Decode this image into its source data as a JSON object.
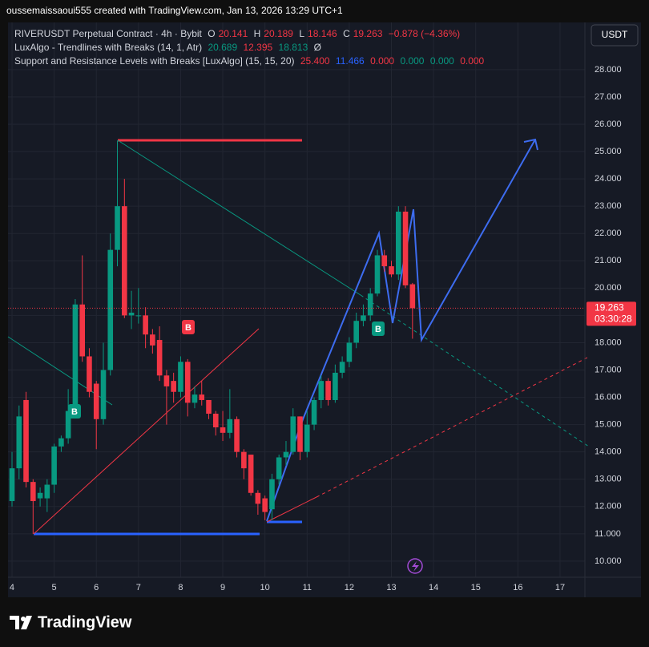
{
  "header": {
    "text": "oussemaissaoui555 created with TradingView.com, Jan 13, 2026 13:29 UTC+1"
  },
  "legend": {
    "symbol": {
      "name": "RIVERUSDT Perpetual Contract · 4h · Bybit",
      "o_label": "O",
      "o": "20.141",
      "h_label": "H",
      "h": "20.189",
      "l_label": "L",
      "l": "18.146",
      "c_label": "C",
      "c": "19.263",
      "change": "−0.878 (−4.36%)"
    },
    "trendlines": {
      "name": "LuxAlgo - Trendlines with Breaks (14, 1, Atr)",
      "values": [
        "20.689",
        "12.395",
        "18.813",
        "Ø"
      ]
    },
    "sr": {
      "name": "Support and Resistance Levels with Breaks [LuxAlgo] (15, 15, 20)",
      "values": [
        "25.400",
        "11.466",
        "0.000",
        "0.000",
        "0.000",
        "0.000"
      ]
    }
  },
  "currency": "USDT",
  "signals": [
    "B",
    "B",
    "B"
  ],
  "brand": "TradingView",
  "chart_data": {
    "type": "candlestick",
    "x": [
      4,
      4.167,
      4.333,
      4.5,
      4.667,
      4.833,
      5,
      5.167,
      5.333,
      5.5,
      5.667,
      5.833,
      6,
      6.167,
      6.333,
      6.5,
      6.667,
      6.833,
      7,
      7.167,
      7.333,
      7.5,
      7.667,
      7.833,
      8,
      8.167,
      8.333,
      8.5,
      8.667,
      8.833,
      9,
      9.167,
      9.333,
      9.5,
      9.667,
      9.833,
      10,
      10.167,
      10.333,
      10.5,
      10.667,
      10.833,
      11,
      11.167,
      11.333,
      11.5,
      11.667,
      11.833,
      12,
      12.167,
      12.333,
      12.5,
      12.667,
      12.833,
      13,
      13.167,
      13.333,
      13.5
    ],
    "open": [
      12.2,
      13.4,
      15.9,
      12.9,
      12.3,
      12.3,
      12.8,
      14.2,
      14.5,
      15.5,
      19.4,
      17.5,
      16.5,
      15.2,
      17.0,
      21.4,
      23.0,
      19.0,
      19.0,
      19.0,
      18.3,
      18.1,
      16.8,
      16.6,
      16.2,
      17.3,
      15.8,
      16.1,
      15.9,
      15.4,
      14.9,
      14.7,
      15.2,
      14.0,
      13.9,
      12.5,
      12.3,
      11.9,
      13.0,
      13.8,
      14.0,
      15.3,
      14.0,
      15.0,
      15.9,
      16.6,
      15.9,
      16.9,
      17.3,
      18.0,
      18.8,
      19.0,
      19.8,
      21.2,
      20.8,
      20.5,
      22.8,
      20.141
    ],
    "high": [
      14.0,
      15.7,
      16.2,
      13.0,
      12.7,
      13.0,
      14.3,
      14.6,
      16.3,
      19.6,
      21.2,
      17.8,
      16.6,
      18.0,
      22.0,
      25.4,
      24.0,
      19.9,
      20.0,
      19.3,
      18.5,
      18.6,
      17.0,
      16.9,
      17.5,
      17.4,
      16.4,
      16.6,
      15.9,
      15.5,
      15.5,
      16.3,
      15.3,
      14.1,
      13.9,
      12.6,
      12.4,
      13.2,
      13.9,
      14.4,
      15.6,
      15.3,
      15.5,
      16.0,
      16.8,
      16.7,
      17.2,
      17.5,
      18.2,
      19.1,
      19.4,
      20.0,
      21.4,
      21.4,
      21.0,
      23.0,
      23.0,
      20.189
    ],
    "low": [
      12.0,
      13.0,
      12.7,
      11.0,
      12.0,
      11.8,
      12.5,
      14.0,
      14.3,
      15.3,
      17.3,
      16.0,
      14.1,
      15.0,
      16.8,
      20.8,
      18.9,
      18.5,
      18.7,
      17.8,
      17.6,
      16.6,
      15.0,
      15.8,
      16.0,
      15.3,
      15.6,
      15.7,
      15.2,
      14.6,
      14.4,
      14.5,
      13.8,
      13.0,
      12.4,
      11.7,
      11.5,
      11.5,
      12.8,
      13.5,
      13.9,
      13.7,
      13.8,
      14.8,
      15.6,
      15.7,
      15.8,
      16.7,
      17.1,
      17.8,
      18.6,
      18.8,
      19.7,
      20.6,
      20.4,
      20.3,
      20.0,
      18.146
    ],
    "close": [
      13.4,
      15.3,
      12.9,
      12.2,
      12.5,
      12.8,
      14.2,
      14.5,
      15.5,
      19.4,
      17.5,
      16.2,
      15.2,
      17.0,
      21.4,
      23.0,
      19.0,
      19.1,
      19.0,
      18.3,
      17.9,
      16.8,
      16.4,
      16.2,
      17.3,
      15.8,
      16.1,
      15.9,
      15.4,
      14.9,
      14.7,
      15.2,
      14.0,
      13.4,
      12.5,
      12.1,
      11.8,
      13.0,
      13.8,
      14.0,
      15.3,
      14.0,
      15.0,
      15.9,
      16.6,
      15.9,
      16.9,
      17.3,
      18.0,
      18.8,
      19.0,
      19.8,
      21.2,
      20.8,
      20.5,
      22.8,
      20.1,
      19.263
    ],
    "up_color": "#089981",
    "down_color": "#f23645",
    "xlim": [
      3.905,
      17.59
    ],
    "ylim": [
      9.41,
      29.67
    ],
    "xticks": [
      4,
      5,
      6,
      7,
      8,
      9,
      10,
      11,
      12,
      13,
      14,
      15,
      16,
      17
    ],
    "yticks": [
      {
        "value": 10,
        "label": "10.000"
      },
      {
        "value": 11,
        "label": "11.000"
      },
      {
        "value": 12,
        "label": "12.000"
      },
      {
        "value": 13,
        "label": "13.000"
      },
      {
        "value": 14,
        "label": "14.000"
      },
      {
        "value": 15,
        "label": "15.000"
      },
      {
        "value": 16,
        "label": "16.000"
      },
      {
        "value": 17,
        "label": "17.000"
      },
      {
        "value": 18,
        "label": "18.000"
      },
      {
        "value": 19,
        "label": "19.000"
      },
      {
        "value": 20,
        "label": "20.000"
      },
      {
        "value": 21,
        "label": "21.000"
      },
      {
        "value": 22,
        "label": "22.000"
      },
      {
        "value": 23,
        "label": "23.000"
      },
      {
        "value": 24,
        "label": "24.000"
      },
      {
        "value": 25,
        "label": "25.000"
      },
      {
        "value": 26,
        "label": "26.000"
      },
      {
        "value": 27,
        "label": "27.000"
      },
      {
        "value": 28,
        "label": "28.000"
      }
    ],
    "grid": true,
    "last_price": 19.263,
    "countdown": "03:30:28"
  }
}
